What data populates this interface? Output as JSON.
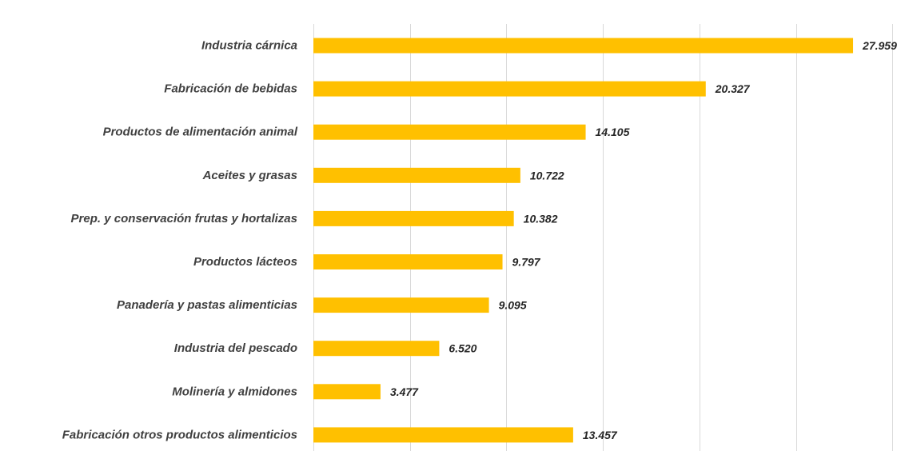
{
  "chart_data": {
    "type": "bar",
    "orientation": "horizontal",
    "categories": [
      "Industria cárnica",
      "Fabricación de bebidas",
      "Productos de alimentación animal",
      "Aceites y grasas",
      "Prep. y conservación frutas y hortalizas",
      "Productos lácteos",
      "Panadería y pastas alimenticias",
      "Industria del pescado",
      "Molinería y almidones",
      "Fabricación otros productos alimenticios"
    ],
    "values": [
      27959,
      20327,
      14105,
      10722,
      10382,
      9797,
      9095,
      6520,
      3477,
      13457
    ],
    "value_labels": [
      "27.959",
      "20.327",
      "14.105",
      "10.722",
      "10.382",
      "9.797",
      "9.095",
      "6.520",
      "3.477",
      "13.457"
    ],
    "title": "",
    "xlabel": "",
    "ylabel": "",
    "xlim": [
      0,
      30000
    ],
    "grid_step": 5000,
    "grid": true,
    "tick_labels_visible": false,
    "legend": "none",
    "bar_color": "#ffc000",
    "grid_color": "#d9d9d9",
    "label_color": "#404040",
    "value_color": "#262626"
  }
}
